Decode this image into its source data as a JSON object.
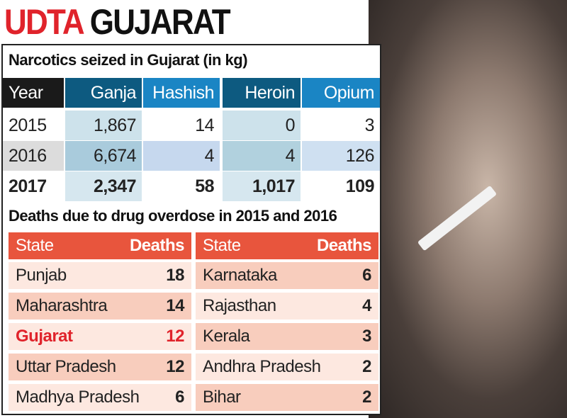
{
  "title": {
    "part1": "UDTA",
    "part2": "GUJARAT"
  },
  "chart_data": [
    {
      "type": "table",
      "title": "Narcotics seized in Gujarat (in kg)",
      "columns": [
        "Year",
        "Ganja",
        "Hashish",
        "Heroin",
        "Opium"
      ],
      "rows": [
        [
          "2015",
          "1,867",
          "14",
          "0",
          "3"
        ],
        [
          "2016",
          "6,674",
          "4",
          "4",
          "126"
        ],
        [
          "2017",
          "2,347",
          "58",
          "1,017",
          "109"
        ]
      ]
    },
    {
      "type": "table",
      "title": "Deaths due to drug overdose in 2015 and 2016",
      "columns": [
        "State",
        "Deaths",
        "State",
        "Deaths"
      ],
      "left": [
        [
          "Punjab",
          "18"
        ],
        [
          "Maharashtra",
          "14"
        ],
        [
          "Gujarat",
          "12"
        ],
        [
          "Uttar Pradesh",
          "12"
        ],
        [
          "Madhya Pradesh",
          "6"
        ]
      ],
      "right": [
        [
          "Karnataka",
          "6"
        ],
        [
          "Rajasthan",
          "4"
        ],
        [
          "Kerala",
          "3"
        ],
        [
          "Andhra Pradesh",
          "2"
        ],
        [
          "Bihar",
          "2"
        ]
      ],
      "highlight": "Gujarat",
      "highlight_color": "#e0232b"
    }
  ]
}
